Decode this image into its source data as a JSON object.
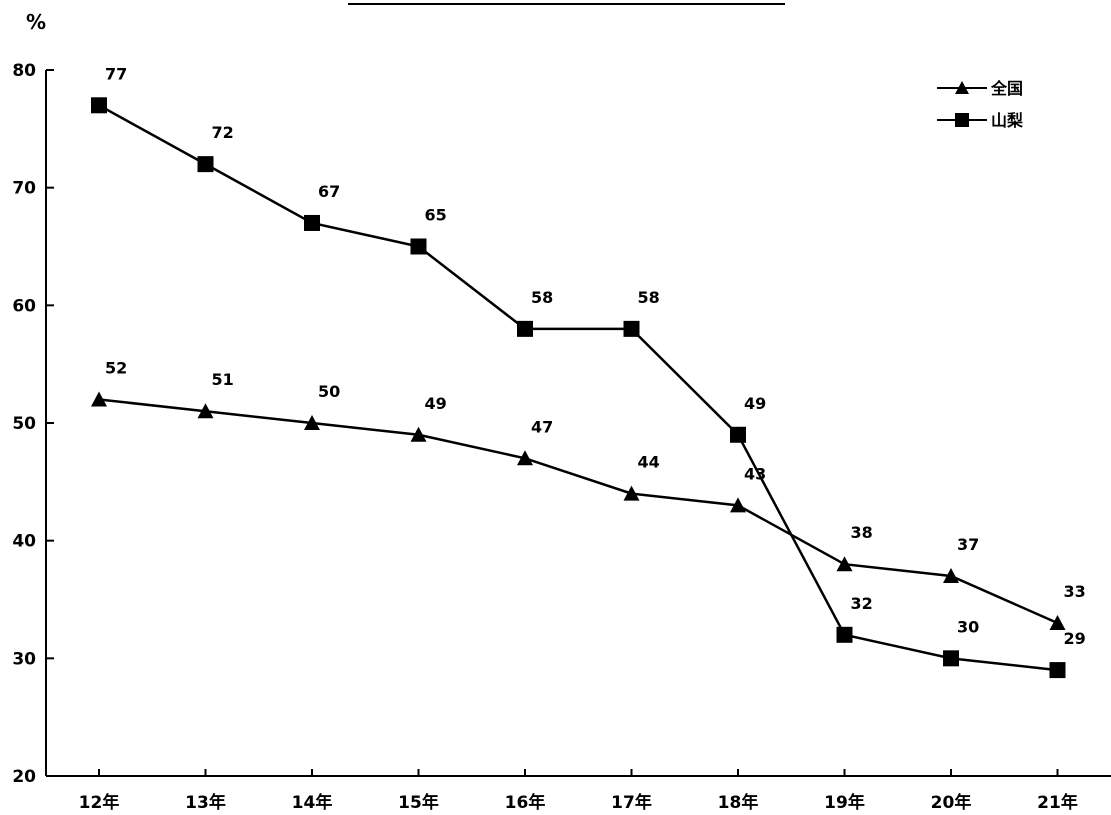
{
  "chart_data": {
    "type": "line",
    "title": "",
    "ylabel": "%",
    "xlabel": "",
    "ylim": [
      20,
      80
    ],
    "yticks": [
      20,
      30,
      40,
      50,
      60,
      70,
      80
    ],
    "categories": [
      "12年",
      "13年",
      "14年",
      "15年",
      "16年",
      "17年",
      "18年",
      "19年",
      "20年",
      "21年"
    ],
    "series": [
      {
        "name": "全国",
        "marker": "triangle",
        "values": [
          52,
          51,
          50,
          49,
          47,
          44,
          43,
          38,
          37,
          33
        ],
        "labels": [
          "52",
          "51",
          "50",
          "49",
          "47",
          "44",
          "43",
          "38",
          "37",
          "33"
        ]
      },
      {
        "name": "山梨",
        "marker": "square",
        "values": [
          77,
          72,
          67,
          65,
          58,
          58,
          49,
          32,
          30,
          29
        ],
        "labels": [
          "77",
          "72",
          "67",
          "65",
          "58",
          "58",
          "49",
          "32",
          "30",
          "29"
        ]
      }
    ],
    "grid": false,
    "legend": "top-right",
    "colors": {
      "line": "#000000",
      "marker": "#000000"
    }
  }
}
